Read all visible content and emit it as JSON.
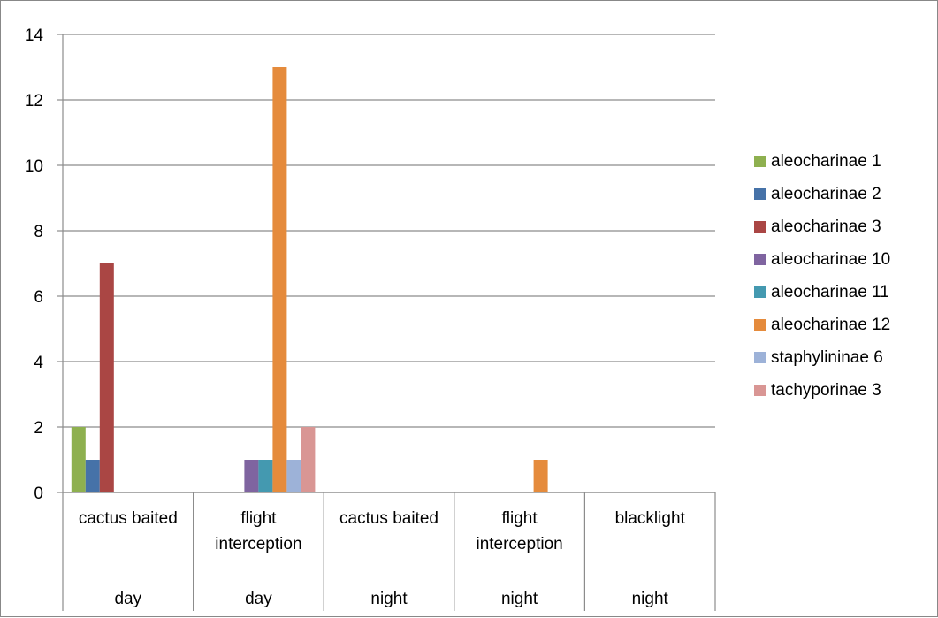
{
  "chart_data": {
    "type": "bar",
    "categories": [
      {
        "lines": [
          "cactus baited"
        ],
        "group": "day"
      },
      {
        "lines": [
          "flight",
          "interception"
        ],
        "group": "day"
      },
      {
        "lines": [
          "cactus baited"
        ],
        "group": "night"
      },
      {
        "lines": [
          "flight",
          "interception"
        ],
        "group": "night"
      },
      {
        "lines": [
          "blacklight"
        ],
        "group": "night"
      }
    ],
    "y_ticks": [
      "0",
      "2",
      "4",
      "6",
      "8",
      "10",
      "12",
      "14"
    ],
    "ylim": [
      0,
      14
    ],
    "grid": true,
    "legend_position": "right",
    "series": [
      {
        "name": "aleocharinae 1",
        "color": "#8EB04F",
        "values": [
          2,
          0,
          0,
          0,
          0
        ]
      },
      {
        "name": "aleocharinae 2",
        "color": "#4672A8",
        "values": [
          1,
          0,
          0,
          0,
          0
        ]
      },
      {
        "name": "aleocharinae 3",
        "color": "#AA4644",
        "values": [
          7,
          0,
          0,
          0,
          0
        ]
      },
      {
        "name": "aleocharinae 10",
        "color": "#7F64A0",
        "values": [
          0,
          1,
          0,
          0,
          0
        ]
      },
      {
        "name": "aleocharinae 11",
        "color": "#4499B0",
        "values": [
          0,
          1,
          0,
          0,
          0
        ]
      },
      {
        "name": "aleocharinae 12",
        "color": "#E58B3C",
        "values": [
          0,
          13,
          0,
          1,
          0
        ]
      },
      {
        "name": "staphylininae 6",
        "color": "#9DB2D8",
        "values": [
          0,
          1,
          0,
          0,
          0
        ]
      },
      {
        "name": "tachyporinae 3",
        "color": "#D99694",
        "values": [
          0,
          2,
          0,
          0,
          0
        ]
      }
    ]
  }
}
